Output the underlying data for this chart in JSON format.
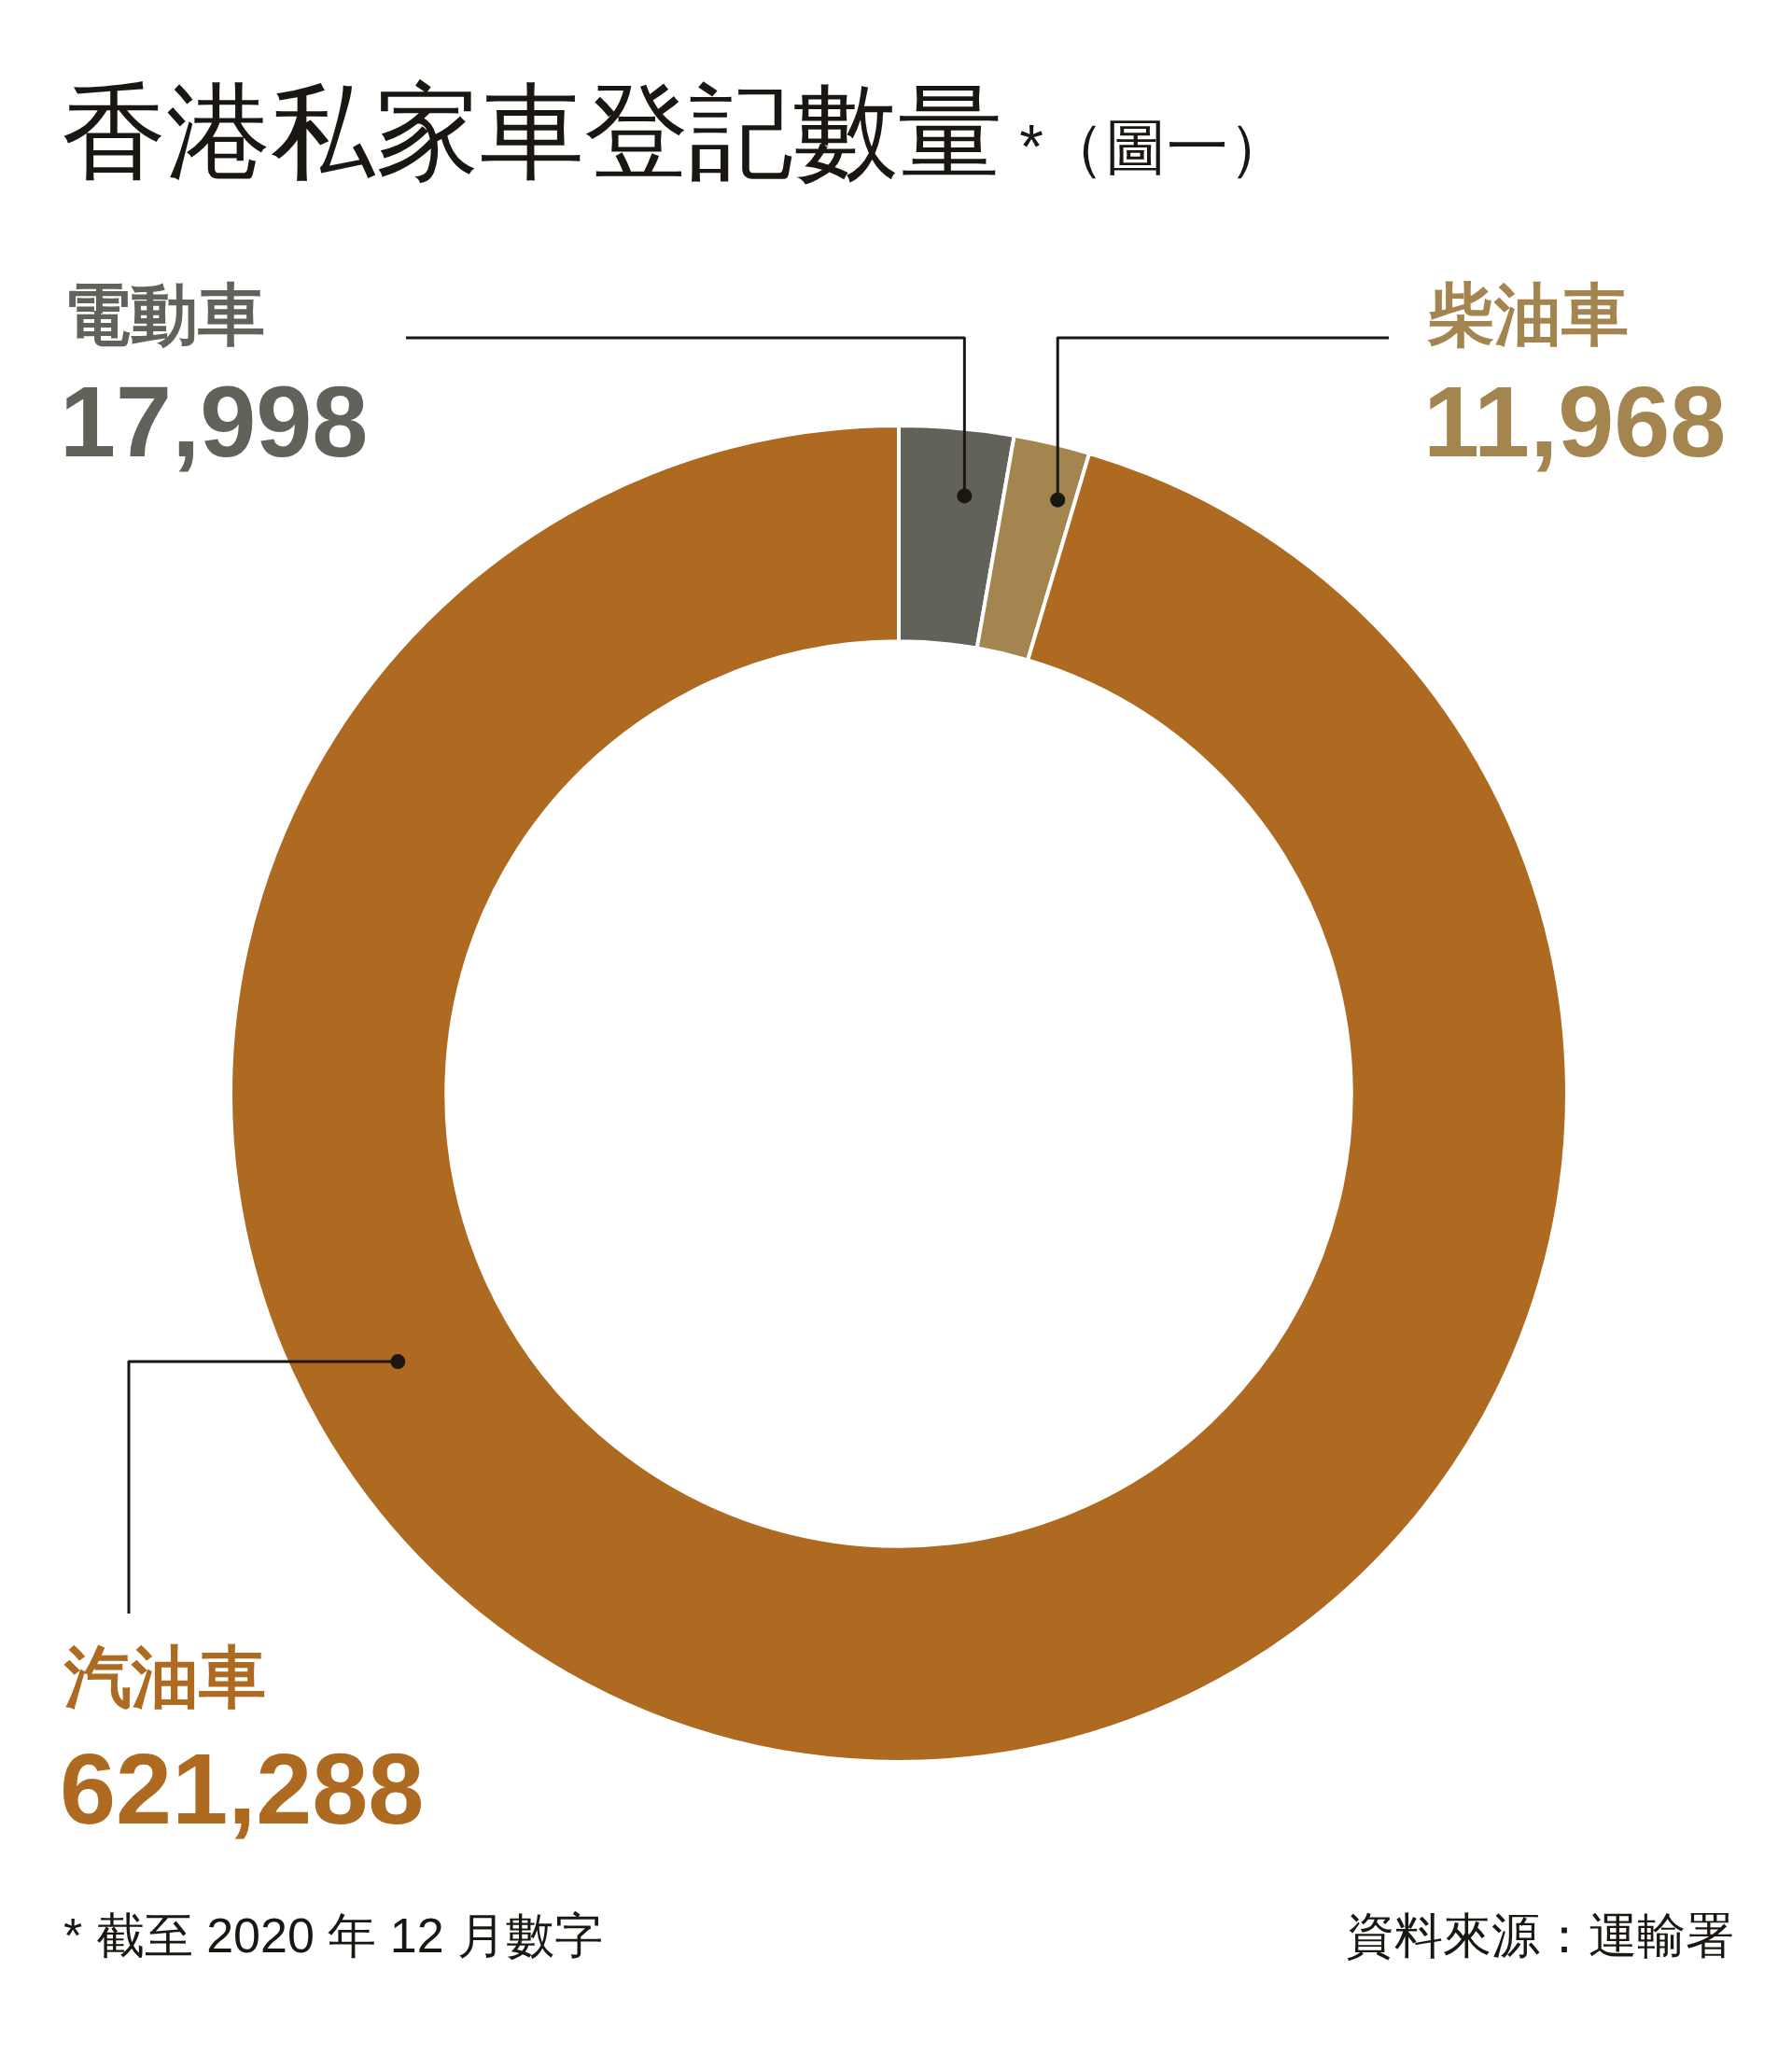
{
  "chart_data": {
    "type": "donut",
    "title": "香港私家車登記數量 *（圖一）",
    "categories": [
      "電動車",
      "柴油車",
      "汽油車"
    ],
    "values": [
      17998,
      11968,
      621288
    ],
    "colors": [
      "#62625a",
      "#a5854f",
      "#ae6a20"
    ],
    "value_labels": [
      "17,998",
      "11,968",
      "621,288"
    ],
    "annotations": [
      "* 截至 2020 年 12 月數字",
      "資料來源：運輸署"
    ],
    "legend": false
  }
}
